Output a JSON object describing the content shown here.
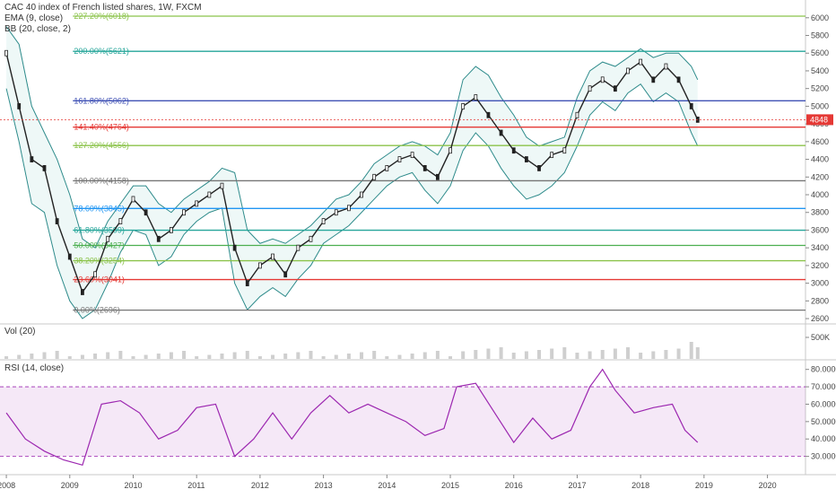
{
  "chart_data": {
    "type": "candlestick",
    "title": "CAC 40 index of French listed shares, 1W, FXCM",
    "indicators": [
      "EMA (9, close)",
      "BB (20, close, 2)"
    ],
    "last_price": "4848",
    "x_labels": [
      "2008",
      "2009",
      "2010",
      "2011",
      "2012",
      "2013",
      "2014",
      "2015",
      "2016",
      "2017",
      "2018",
      "2019",
      "2020"
    ],
    "x": [
      2008,
      2009,
      2010,
      2011,
      2012,
      2013,
      2014,
      2015,
      2016,
      2017,
      2018,
      2019,
      2020
    ],
    "price_axis": {
      "ticks": [
        2600,
        2800,
        3000,
        3200,
        3400,
        3600,
        3800,
        4000,
        4200,
        4400,
        4600,
        4800,
        5000,
        5200,
        5400,
        5600,
        5800,
        6000
      ],
      "range": [
        2550,
        6150
      ]
    },
    "fib_levels": [
      {
        "label": "227.20%(6018)",
        "value": 6018,
        "color": "#8bc34a"
      },
      {
        "label": "200.00%(5621)",
        "value": 5621,
        "color": "#26a69a"
      },
      {
        "label": "161.80%(5062)",
        "value": 5062,
        "color": "#3f51b5"
      },
      {
        "label": "141.40%(4764)",
        "value": 4764,
        "color": "#e53935"
      },
      {
        "label": "127.20%(4556)",
        "value": 4556,
        "color": "#8bc34a"
      },
      {
        "label": "100.00%(4158)",
        "value": 4158,
        "color": "#757575"
      },
      {
        "label": "78.60%(3845)",
        "value": 3845,
        "color": "#2196f3"
      },
      {
        "label": "61.80%(3599)",
        "value": 3599,
        "color": "#26a69a"
      },
      {
        "label": "50.00%(3427)",
        "value": 3427,
        "color": "#4caf50"
      },
      {
        "label": "38.20%(3254)",
        "value": 3254,
        "color": "#8bc34a"
      },
      {
        "label": "23.60%(3041)",
        "value": 3041,
        "color": "#e53935"
      },
      {
        "label": "0.00%(2696)",
        "value": 2696,
        "color": "#757575"
      }
    ],
    "price_series": {
      "x": [
        2008.0,
        2008.2,
        2008.4,
        2008.6,
        2008.8,
        2009.0,
        2009.2,
        2009.4,
        2009.6,
        2009.8,
        2010.0,
        2010.2,
        2010.4,
        2010.6,
        2010.8,
        2011.0,
        2011.2,
        2011.4,
        2011.6,
        2011.8,
        2012.0,
        2012.2,
        2012.4,
        2012.6,
        2012.8,
        2013.0,
        2013.2,
        2013.4,
        2013.6,
        2013.8,
        2014.0,
        2014.2,
        2014.4,
        2014.6,
        2014.8,
        2015.0,
        2015.2,
        2015.4,
        2015.6,
        2015.8,
        2016.0,
        2016.2,
        2016.4,
        2016.6,
        2016.8,
        2017.0,
        2017.2,
        2017.4,
        2017.6,
        2017.8,
        2018.0,
        2018.2,
        2018.4,
        2018.6,
        2018.8,
        2018.9
      ],
      "close": [
        5600,
        5000,
        4400,
        4300,
        3700,
        3300,
        2900,
        3100,
        3500,
        3700,
        3950,
        3800,
        3500,
        3600,
        3800,
        3900,
        4000,
        4100,
        3400,
        3000,
        3200,
        3300,
        3100,
        3400,
        3500,
        3700,
        3800,
        3850,
        4000,
        4200,
        4300,
        4400,
        4450,
        4300,
        4200,
        4500,
        5000,
        5100,
        4900,
        4700,
        4500,
        4400,
        4300,
        4450,
        4500,
        4900,
        5200,
        5300,
        5200,
        5400,
        5500,
        5300,
        5450,
        5300,
        5000,
        4848
      ],
      "upper": [
        5900,
        5700,
        5000,
        4700,
        4400,
        4000,
        3500,
        3400,
        3700,
        3900,
        4100,
        4100,
        3900,
        3800,
        3950,
        4050,
        4150,
        4300,
        4250,
        3600,
        3450,
        3500,
        3450,
        3550,
        3650,
        3800,
        3950,
        4000,
        4150,
        4350,
        4450,
        4550,
        4600,
        4550,
        4450,
        4700,
        5300,
        5450,
        5350,
        5100,
        4900,
        4650,
        4550,
        4600,
        4650,
        5100,
        5400,
        5500,
        5450,
        5550,
        5650,
        5550,
        5600,
        5600,
        5450,
        5300
      ],
      "lower": [
        5200,
        4600,
        3900,
        3800,
        3200,
        2800,
        2600,
        2700,
        3000,
        3350,
        3600,
        3550,
        3200,
        3300,
        3550,
        3700,
        3800,
        3850,
        3000,
        2700,
        2850,
        2950,
        2850,
        3050,
        3200,
        3450,
        3550,
        3650,
        3800,
        3950,
        4100,
        4200,
        4250,
        4050,
        3900,
        4100,
        4500,
        4700,
        4550,
        4300,
        4100,
        3950,
        4000,
        4100,
        4250,
        4550,
        4900,
        5050,
        4950,
        5150,
        5250,
        5050,
        5150,
        5050,
        4700,
        4550
      ]
    },
    "volume": {
      "label": "Vol (20)",
      "ticks": [
        "500K"
      ]
    },
    "rsi": {
      "label": "RSI (14, close)",
      "ticks": [
        30,
        40,
        50,
        60,
        70,
        80
      ],
      "range": [
        20,
        85
      ],
      "band": [
        30,
        70
      ],
      "x": [
        2008.0,
        2008.3,
        2008.6,
        2008.9,
        2009.2,
        2009.5,
        2009.8,
        2010.1,
        2010.4,
        2010.7,
        2011.0,
        2011.3,
        2011.6,
        2011.9,
        2012.2,
        2012.5,
        2012.8,
        2013.1,
        2013.4,
        2013.7,
        2014.0,
        2014.3,
        2014.6,
        2014.9,
        2015.1,
        2015.4,
        2015.7,
        2016.0,
        2016.3,
        2016.6,
        2016.9,
        2017.2,
        2017.4,
        2017.6,
        2017.9,
        2018.2,
        2018.5,
        2018.7,
        2018.9
      ],
      "values": [
        55,
        40,
        33,
        28,
        25,
        60,
        62,
        55,
        40,
        45,
        58,
        60,
        30,
        40,
        55,
        40,
        55,
        65,
        55,
        60,
        55,
        50,
        42,
        46,
        70,
        72,
        55,
        38,
        52,
        40,
        45,
        70,
        80,
        68,
        55,
        58,
        60,
        45,
        38
      ]
    }
  }
}
